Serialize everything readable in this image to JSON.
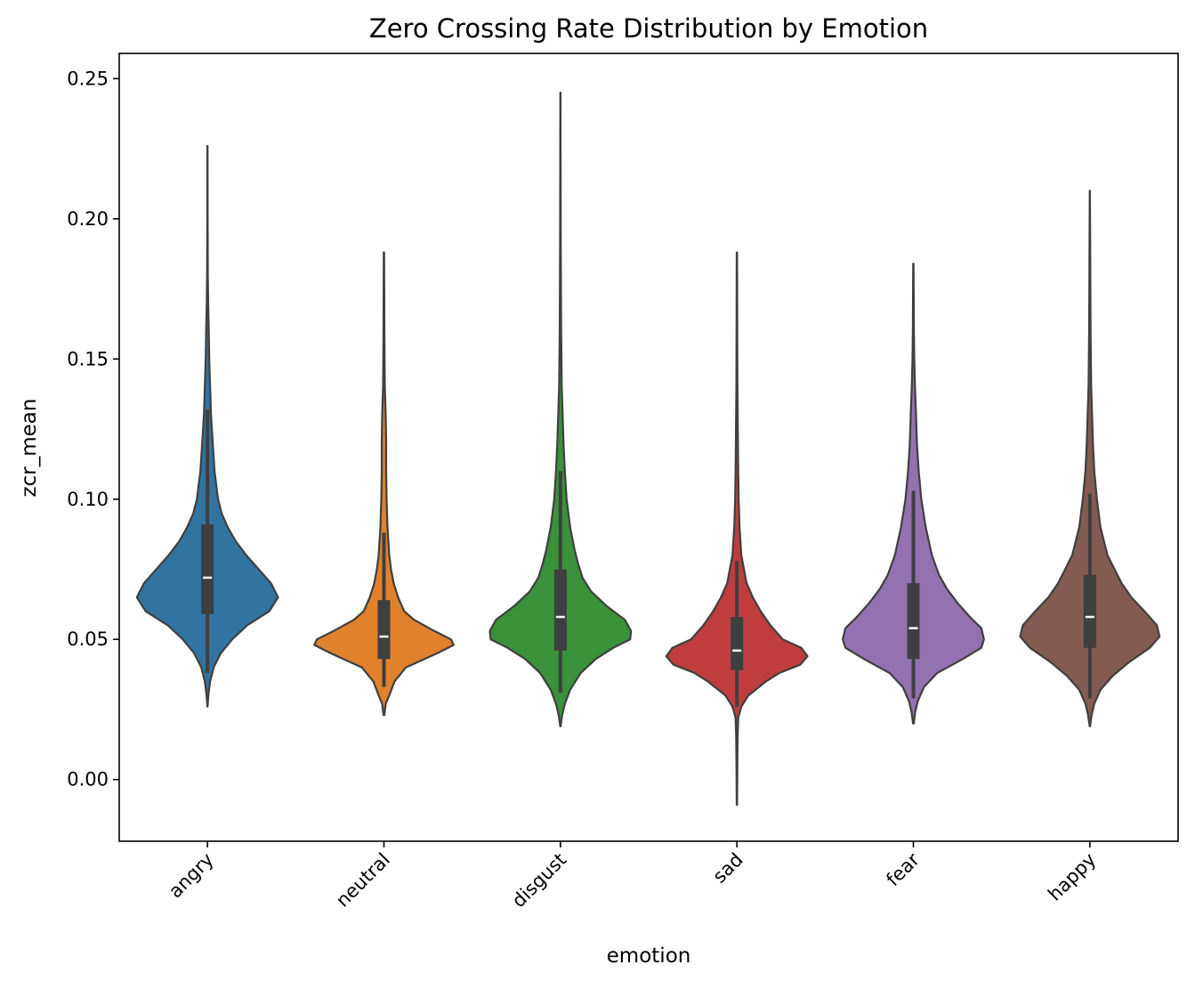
{
  "chart_data": {
    "type": "violin",
    "title": "Zero Crossing Rate Distribution by Emotion",
    "xlabel": "emotion",
    "ylabel": "zcr_mean",
    "ylim": [
      -0.022,
      0.259
    ],
    "yticks": [
      0.0,
      0.05,
      0.1,
      0.15,
      0.2,
      0.25
    ],
    "ytick_labels": [
      "0.00",
      "0.05",
      "0.10",
      "0.15",
      "0.20",
      "0.25"
    ],
    "categories": [
      "angry",
      "neutral",
      "disgust",
      "sad",
      "fear",
      "happy"
    ],
    "grid": false,
    "legend": "none",
    "series": [
      {
        "category": "angry",
        "color": "#3274a1",
        "min": 0.026,
        "max": 0.226,
        "q1": 0.059,
        "median": 0.072,
        "q3": 0.091,
        "whisker_low": 0.038,
        "whisker_high": 0.132,
        "density": [
          [
            0.026,
            0.001
          ],
          [
            0.03,
            0.01
          ],
          [
            0.035,
            0.03
          ],
          [
            0.04,
            0.07
          ],
          [
            0.045,
            0.15
          ],
          [
            0.05,
            0.28
          ],
          [
            0.055,
            0.45
          ],
          [
            0.06,
            0.7
          ],
          [
            0.065,
            0.8
          ],
          [
            0.07,
            0.72
          ],
          [
            0.075,
            0.58
          ],
          [
            0.08,
            0.44
          ],
          [
            0.085,
            0.32
          ],
          [
            0.09,
            0.23
          ],
          [
            0.095,
            0.16
          ],
          [
            0.1,
            0.12
          ],
          [
            0.105,
            0.1
          ],
          [
            0.11,
            0.08
          ],
          [
            0.12,
            0.06
          ],
          [
            0.13,
            0.04
          ],
          [
            0.14,
            0.03
          ],
          [
            0.15,
            0.02
          ],
          [
            0.16,
            0.015
          ],
          [
            0.17,
            0.008
          ],
          [
            0.18,
            0.004
          ],
          [
            0.2,
            0.002
          ],
          [
            0.226,
            0.001
          ]
        ]
      },
      {
        "category": "neutral",
        "color": "#e1812c",
        "min": 0.023,
        "max": 0.188,
        "q1": 0.043,
        "median": 0.051,
        "q3": 0.064,
        "whisker_low": 0.033,
        "whisker_high": 0.088,
        "density": [
          [
            0.023,
            0.005
          ],
          [
            0.027,
            0.02
          ],
          [
            0.03,
            0.06
          ],
          [
            0.035,
            0.12
          ],
          [
            0.04,
            0.25
          ],
          [
            0.045,
            0.6
          ],
          [
            0.048,
            0.79
          ],
          [
            0.05,
            0.76
          ],
          [
            0.053,
            0.57
          ],
          [
            0.057,
            0.34
          ],
          [
            0.06,
            0.23
          ],
          [
            0.065,
            0.16
          ],
          [
            0.07,
            0.11
          ],
          [
            0.075,
            0.08
          ],
          [
            0.08,
            0.06
          ],
          [
            0.09,
            0.04
          ],
          [
            0.1,
            0.03
          ],
          [
            0.11,
            0.025
          ],
          [
            0.12,
            0.025
          ],
          [
            0.13,
            0.02
          ],
          [
            0.14,
            0.01
          ],
          [
            0.16,
            0.005
          ],
          [
            0.188,
            0.002
          ]
        ]
      },
      {
        "category": "disgust",
        "color": "#3a923a",
        "min": 0.019,
        "max": 0.245,
        "q1": 0.046,
        "median": 0.058,
        "q3": 0.075,
        "whisker_low": 0.031,
        "whisker_high": 0.11,
        "density": [
          [
            0.019,
            0.002
          ],
          [
            0.023,
            0.02
          ],
          [
            0.027,
            0.05
          ],
          [
            0.032,
            0.11
          ],
          [
            0.038,
            0.23
          ],
          [
            0.043,
            0.4
          ],
          [
            0.047,
            0.6
          ],
          [
            0.05,
            0.79
          ],
          [
            0.053,
            0.8
          ],
          [
            0.057,
            0.73
          ],
          [
            0.062,
            0.52
          ],
          [
            0.067,
            0.35
          ],
          [
            0.072,
            0.25
          ],
          [
            0.077,
            0.2
          ],
          [
            0.082,
            0.16
          ],
          [
            0.09,
            0.11
          ],
          [
            0.1,
            0.07
          ],
          [
            0.11,
            0.05
          ],
          [
            0.12,
            0.035
          ],
          [
            0.13,
            0.025
          ],
          [
            0.14,
            0.015
          ],
          [
            0.16,
            0.008
          ],
          [
            0.19,
            0.004
          ],
          [
            0.22,
            0.002
          ],
          [
            0.245,
            0.001
          ]
        ]
      },
      {
        "category": "sad",
        "color": "#c03d3e",
        "min": -0.009,
        "max": 0.188,
        "q1": 0.039,
        "median": 0.046,
        "q3": 0.058,
        "whisker_low": 0.026,
        "whisker_high": 0.078,
        "density": [
          [
            -0.009,
            0.002
          ],
          [
            0.005,
            0.005
          ],
          [
            0.015,
            0.008
          ],
          [
            0.022,
            0.015
          ],
          [
            0.026,
            0.05
          ],
          [
            0.03,
            0.13
          ],
          [
            0.035,
            0.33
          ],
          [
            0.038,
            0.48
          ],
          [
            0.041,
            0.72
          ],
          [
            0.044,
            0.8
          ],
          [
            0.047,
            0.73
          ],
          [
            0.05,
            0.52
          ],
          [
            0.055,
            0.38
          ],
          [
            0.06,
            0.27
          ],
          [
            0.065,
            0.18
          ],
          [
            0.07,
            0.11
          ],
          [
            0.08,
            0.05
          ],
          [
            0.09,
            0.03
          ],
          [
            0.1,
            0.02
          ],
          [
            0.11,
            0.015
          ],
          [
            0.12,
            0.012
          ],
          [
            0.14,
            0.006
          ],
          [
            0.16,
            0.004
          ],
          [
            0.188,
            0.002
          ]
        ]
      },
      {
        "category": "fear",
        "color": "#9372b2",
        "min": 0.02,
        "max": 0.184,
        "q1": 0.043,
        "median": 0.054,
        "q3": 0.07,
        "whisker_low": 0.029,
        "whisker_high": 0.103,
        "density": [
          [
            0.02,
            0.004
          ],
          [
            0.024,
            0.02
          ],
          [
            0.028,
            0.05
          ],
          [
            0.033,
            0.12
          ],
          [
            0.038,
            0.27
          ],
          [
            0.043,
            0.56
          ],
          [
            0.047,
            0.77
          ],
          [
            0.05,
            0.8
          ],
          [
            0.054,
            0.77
          ],
          [
            0.058,
            0.64
          ],
          [
            0.063,
            0.5
          ],
          [
            0.068,
            0.38
          ],
          [
            0.073,
            0.29
          ],
          [
            0.08,
            0.21
          ],
          [
            0.09,
            0.14
          ],
          [
            0.1,
            0.09
          ],
          [
            0.11,
            0.06
          ],
          [
            0.12,
            0.04
          ],
          [
            0.13,
            0.03
          ],
          [
            0.14,
            0.018
          ],
          [
            0.15,
            0.01
          ],
          [
            0.16,
            0.006
          ],
          [
            0.184,
            0.002
          ]
        ]
      },
      {
        "category": "happy",
        "color": "#845b53",
        "min": 0.019,
        "max": 0.21,
        "q1": 0.047,
        "median": 0.058,
        "q3": 0.073,
        "whisker_low": 0.029,
        "whisker_high": 0.102,
        "density": [
          [
            0.019,
            0.002
          ],
          [
            0.023,
            0.02
          ],
          [
            0.027,
            0.05
          ],
          [
            0.032,
            0.12
          ],
          [
            0.037,
            0.26
          ],
          [
            0.042,
            0.45
          ],
          [
            0.047,
            0.68
          ],
          [
            0.051,
            0.79
          ],
          [
            0.055,
            0.76
          ],
          [
            0.06,
            0.62
          ],
          [
            0.065,
            0.47
          ],
          [
            0.07,
            0.36
          ],
          [
            0.075,
            0.28
          ],
          [
            0.08,
            0.2
          ],
          [
            0.09,
            0.12
          ],
          [
            0.1,
            0.08
          ],
          [
            0.11,
            0.05
          ],
          [
            0.12,
            0.035
          ],
          [
            0.13,
            0.025
          ],
          [
            0.14,
            0.015
          ],
          [
            0.16,
            0.008
          ],
          [
            0.19,
            0.004
          ],
          [
            0.21,
            0.001
          ]
        ]
      }
    ]
  }
}
